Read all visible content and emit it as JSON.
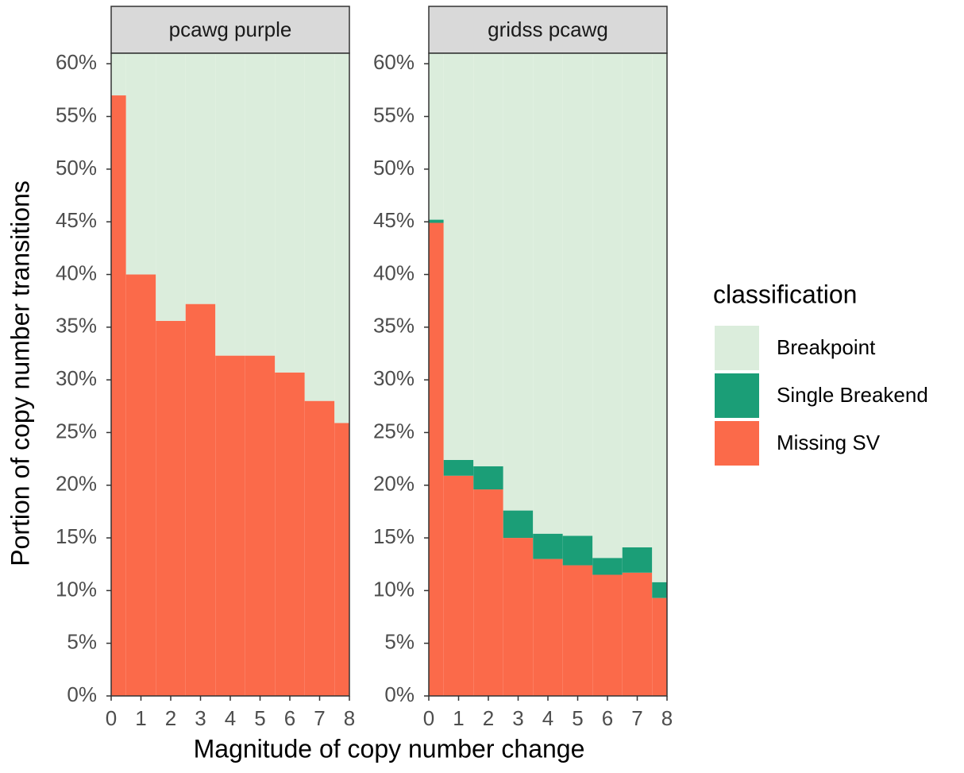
{
  "chart_data": {
    "type": "bar",
    "stacked": true,
    "x_label": "Magnitude of copy number change",
    "y_label": "Portion of copy number transitions",
    "legend_title": "classification",
    "x": [
      0,
      1,
      2,
      3,
      4,
      5,
      6,
      7,
      8
    ],
    "xlim": [
      0,
      8
    ],
    "xticks": [
      0,
      1,
      2,
      3,
      4,
      5,
      6,
      7,
      8
    ],
    "ylim": [
      0,
      61
    ],
    "yticks": [
      {
        "value": 0,
        "label": "0%"
      },
      {
        "value": 5,
        "label": "5%"
      },
      {
        "value": 10,
        "label": "10%"
      },
      {
        "value": 15,
        "label": "15%"
      },
      {
        "value": 20,
        "label": "20%"
      },
      {
        "value": 25,
        "label": "25%"
      },
      {
        "value": 30,
        "label": "30%"
      },
      {
        "value": 35,
        "label": "35%"
      },
      {
        "value": 40,
        "label": "40%"
      },
      {
        "value": 45,
        "label": "45%"
      },
      {
        "value": 50,
        "label": "50%"
      },
      {
        "value": 55,
        "label": "55%"
      },
      {
        "value": 60,
        "label": "60%"
      }
    ],
    "series": [
      {
        "name": "Breakpoint",
        "color": "#dbeddc"
      },
      {
        "name": "Single Breakend",
        "color": "#1b9e77"
      },
      {
        "name": "Missing SV",
        "color": "#fb6a4a"
      }
    ],
    "panels": [
      {
        "title": "pcawg purple",
        "values": [
          [
            43.0,
            60.0,
            64.4,
            62.8,
            67.7,
            67.7,
            69.3,
            72.0,
            74.1
          ],
          [
            0,
            0,
            0,
            0,
            0,
            0,
            0,
            0,
            0
          ],
          [
            57.0,
            40.0,
            35.6,
            37.2,
            32.3,
            32.3,
            30.7,
            28.0,
            25.9
          ]
        ]
      },
      {
        "title": "gridss pcawg",
        "values": [
          [
            54.8,
            77.6,
            78.2,
            82.4,
            84.6,
            84.8,
            86.9,
            85.9,
            89.2
          ],
          [
            0.3,
            1.5,
            2.2,
            2.6,
            2.4,
            2.8,
            1.6,
            2.4,
            1.5
          ],
          [
            44.9,
            20.9,
            19.6,
            15.0,
            13.0,
            12.4,
            11.5,
            11.7,
            9.3
          ]
        ]
      }
    ]
  }
}
